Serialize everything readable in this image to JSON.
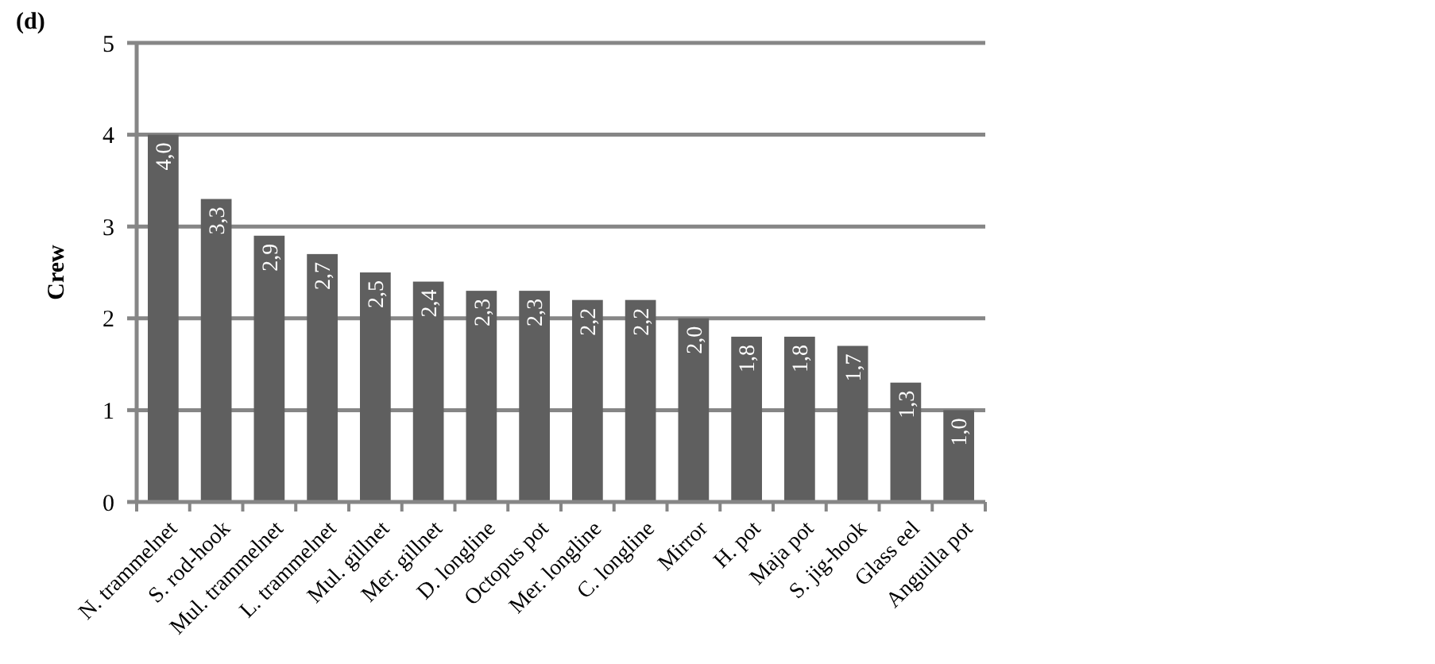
{
  "chart_data": {
    "type": "bar",
    "title": "(d)",
    "ylabel": "Crew",
    "categories": [
      "N. trammelnet",
      "S. rod-hook",
      "Mul. trammelnet",
      "L. trammelnet",
      "Mul. gillnet",
      "Mer. gillnet",
      "D. longline",
      "Octopus pot",
      "Mer. longline",
      "C. longline",
      "Mirror",
      "H. pot",
      "Maja pot",
      "S. jig-hook",
      "Glass eel",
      "Anguilla pot"
    ],
    "values": [
      4.0,
      3.3,
      2.9,
      2.7,
      2.5,
      2.4,
      2.3,
      2.3,
      2.2,
      2.2,
      2.0,
      1.8,
      1.8,
      1.7,
      1.3,
      1.0
    ],
    "value_labels": [
      "4,0",
      "3,3",
      "2,9",
      "2,7",
      "2,5",
      "2,4",
      "2,3",
      "2,3",
      "2,2",
      "2,2",
      "2,0",
      "1,8",
      "1,8",
      "1,7",
      "1,3",
      "1,0"
    ],
    "color": "#5f5f5f",
    "ylim": [
      0,
      5
    ],
    "yticks": [
      0,
      1,
      2,
      3,
      4,
      5
    ],
    "grid": "y"
  }
}
